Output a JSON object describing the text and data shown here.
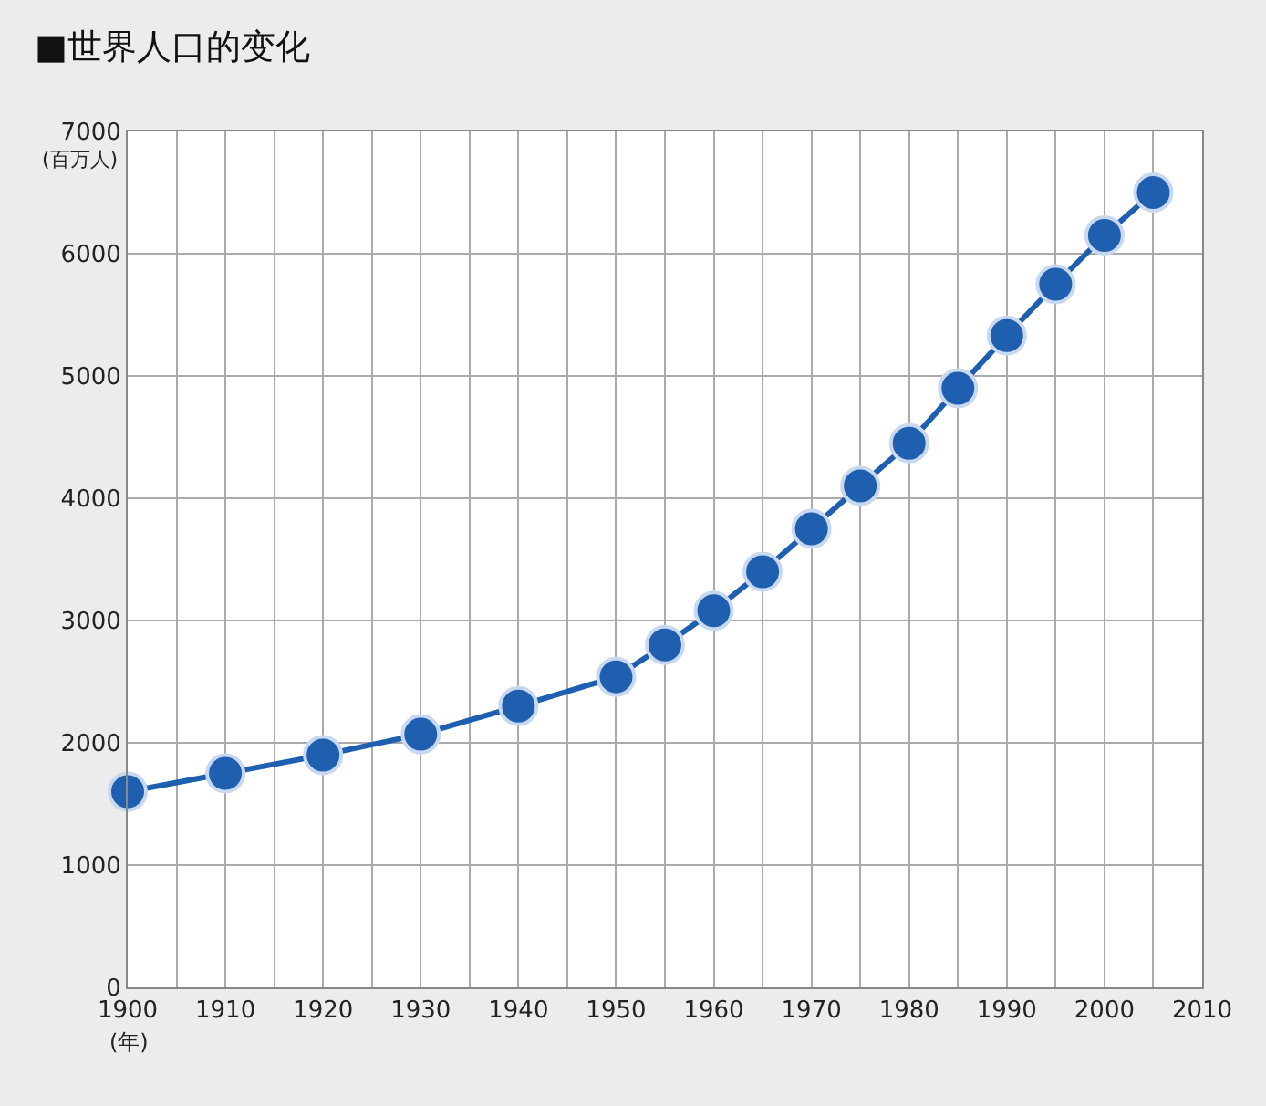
{
  "chart_data": {
    "type": "line",
    "title": "■世界人口的变化",
    "xlabel": "(年)",
    "ylabel": "(百万人)",
    "x": [
      1900,
      1910,
      1920,
      1930,
      1940,
      1950,
      1955,
      1960,
      1965,
      1970,
      1975,
      1980,
      1985,
      1990,
      1995,
      2000,
      2005
    ],
    "series": [
      {
        "color": "#1f5fb0",
        "values": [
          1600,
          1750,
          1900,
          2070,
          2300,
          2540,
          2800,
          3080,
          3400,
          3750,
          4100,
          4450,
          4900,
          5330,
          5750,
          6150,
          6500
        ]
      }
    ],
    "xlim": [
      1900,
      2010
    ],
    "xticks": [
      1900,
      {
        "value": 1905,
        "label": null
      },
      1910,
      {
        "value": 1915,
        "label": null
      },
      1920,
      {
        "value": 1925,
        "label": null
      },
      1930,
      {
        "value": 1935,
        "label": null
      },
      1940,
      {
        "value": 1945,
        "label": null
      },
      1950,
      {
        "value": 1955,
        "label": null
      },
      1960,
      {
        "value": 1965,
        "label": null
      },
      1970,
      {
        "value": 1975,
        "label": null
      },
      1980,
      {
        "value": 1985,
        "label": null
      },
      1990,
      {
        "value": 1995,
        "label": null
      },
      2000,
      {
        "value": 2005,
        "label": null
      },
      2010
    ],
    "ylim": [
      0,
      7000
    ],
    "yticks": [
      0,
      1000,
      2000,
      3000,
      4000,
      5000,
      6000,
      7000
    ],
    "grid": true,
    "legend": false,
    "marker": "circle",
    "line_style": "solid"
  }
}
